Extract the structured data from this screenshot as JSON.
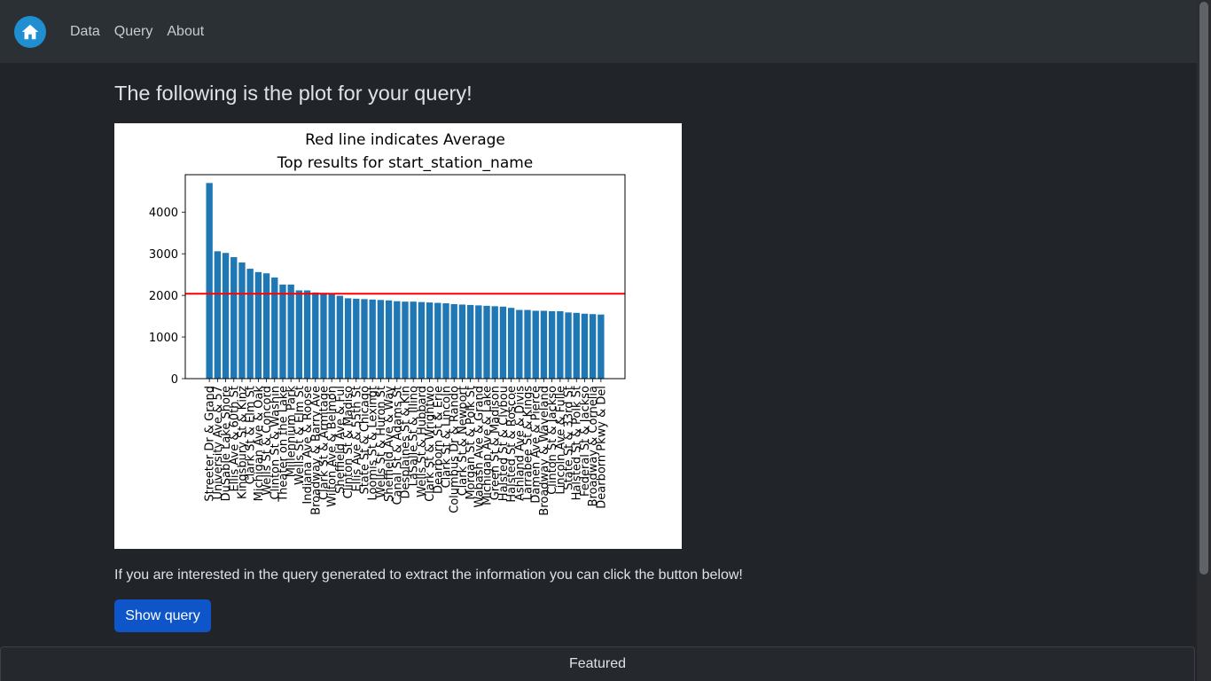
{
  "nav": {
    "items": [
      {
        "label": "Data"
      },
      {
        "label": "Query"
      },
      {
        "label": "About"
      }
    ]
  },
  "main": {
    "title": "The following is the plot for your query!",
    "info": "If you are interested in the query generated to extract the information you can click the button below!",
    "button_label": "Show query"
  },
  "footer": {
    "label": "Featured"
  },
  "chart_data": {
    "type": "bar",
    "title": "Red line indicates Average",
    "subtitle": "Top results for start_station_name",
    "ylim": [
      0,
      4900
    ],
    "yticks": [
      0,
      1000,
      2000,
      3000,
      4000
    ],
    "average": 2040,
    "bar_color": "#1f77b4",
    "average_color": "#ff0000",
    "categories": [
      "Streeter Dr & Grand",
      "University Ave & 57",
      "DuSable Lake Shore",
      "Ellis Ave & 60th St",
      "Kingsbury St & Kinz",
      "Clark St & Elm St",
      "Michigan Ave & Oak",
      "Wells St & Concord",
      "Clinton St & Washin",
      "Theater on the Lake",
      "Millennium Park",
      "Wells St & Elm St",
      "Indiana Ave & Roose",
      "Broadway & Barry Ave",
      "Clark St & Armitage",
      "Wilton Ave & Belmon",
      "Sheffield Ave & Ful",
      "Clinton St & Madiso",
      "Ellis Ave & 55th St",
      "State St & Chicago",
      "Loomis St & Lexingt",
      "Wells St & Huron St",
      "Sheffield Ave & Way",
      "Canal St & Adams St",
      "Desplaines St & Kin",
      "LaSalle St & Illino",
      "Wells St & Hubbard",
      "Clark St & Wrightwo",
      "Dearborn St & Erie",
      "Clark St & Lincoln",
      "Columbus Dr & Rando",
      "Clark St & Newport",
      "Morgan St & Polk St",
      "Wabash Ave & Grand",
      "Michigan Ave & Lake",
      "Green St & Madison",
      "Halsted St & Clybou",
      "Halsted St & Roscoe",
      "Ashland Ave & Divis",
      "Larrabee St & Kings",
      "Damen Ave & Pierce",
      "Broadway & Waveland",
      "Clinton St & Jackso",
      "Lincoln Ave & Fulle",
      "State St & 33rd St",
      "Halsted St & Polk St",
      "Federal St & Jackso",
      "Broadway & Cornelia",
      "Dearborn Pkwy & Del"
    ],
    "values": [
      4700,
      3060,
      3020,
      2920,
      2790,
      2640,
      2560,
      2530,
      2430,
      2260,
      2260,
      2120,
      2120,
      2070,
      2060,
      2030,
      1990,
      1930,
      1920,
      1910,
      1900,
      1890,
      1880,
      1860,
      1850,
      1850,
      1840,
      1830,
      1820,
      1810,
      1790,
      1780,
      1770,
      1760,
      1750,
      1740,
      1730,
      1700,
      1650,
      1650,
      1630,
      1630,
      1620,
      1620,
      1590,
      1580,
      1560,
      1550,
      1540
    ]
  }
}
